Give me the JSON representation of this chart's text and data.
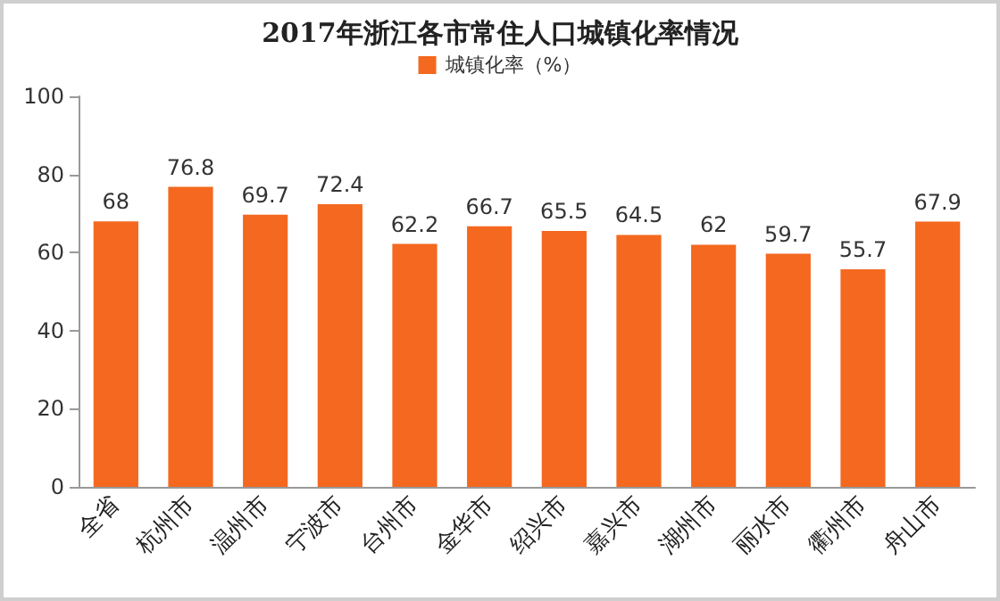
{
  "chart_data": {
    "type": "bar",
    "title": "2017年浙江各市常住人口城镇化率情况",
    "categories": [
      "全省",
      "杭州市",
      "温州市",
      "宁波市",
      "台州市",
      "金华市",
      "绍兴市",
      "嘉兴市",
      "湖州市",
      "丽水市",
      "衢州市",
      "舟山市"
    ],
    "series": [
      {
        "name": "城镇化率（%）",
        "color": "#f4681f",
        "values": [
          68,
          76.8,
          69.7,
          72.4,
          62.2,
          66.7,
          65.5,
          64.5,
          62,
          59.7,
          55.7,
          67.9
        ]
      }
    ],
    "ylim": [
      0,
      100
    ],
    "yticks": [
      0,
      20,
      40,
      60,
      80,
      100
    ],
    "grid": false,
    "legend": "top",
    "data_labels": true
  }
}
